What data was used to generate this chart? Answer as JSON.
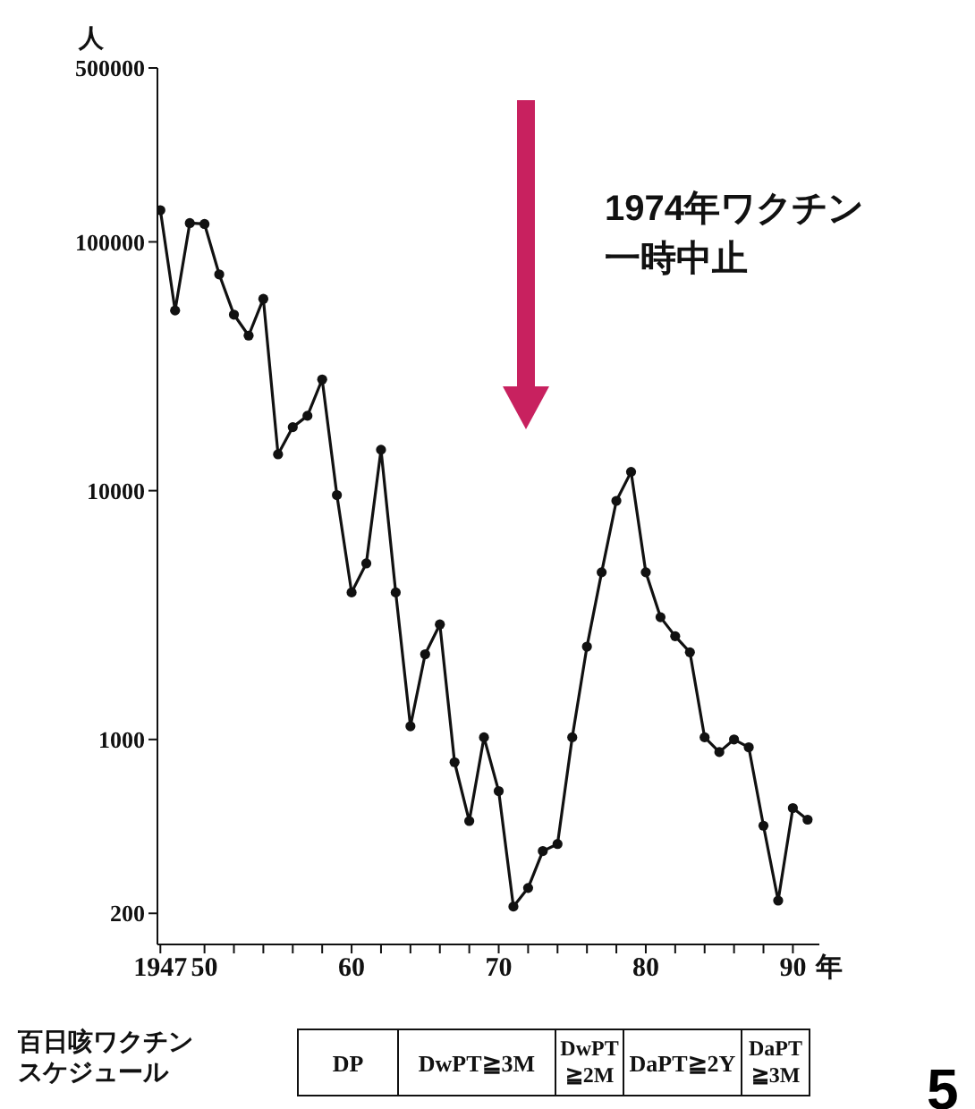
{
  "chart_data": {
    "type": "line",
    "ylabel": "人",
    "xlabel": "年",
    "log": "y",
    "marker": "circle",
    "xlim": [
      1946.8,
      1991.8
    ],
    "xticks": [
      {
        "value": 1947,
        "label": "1947"
      },
      {
        "value": 1950,
        "label": "50"
      },
      {
        "value": 1952,
        "label": null
      },
      {
        "value": 1954,
        "label": null
      },
      {
        "value": 1956,
        "label": null
      },
      {
        "value": 1958,
        "label": null
      },
      {
        "value": 1960,
        "label": "60"
      },
      {
        "value": 1962,
        "label": null
      },
      {
        "value": 1964,
        "label": null
      },
      {
        "value": 1966,
        "label": null
      },
      {
        "value": 1968,
        "label": null
      },
      {
        "value": 1970,
        "label": "70"
      },
      {
        "value": 1972,
        "label": null
      },
      {
        "value": 1974,
        "label": null
      },
      {
        "value": 1976,
        "label": null
      },
      {
        "value": 1978,
        "label": null
      },
      {
        "value": 1980,
        "label": "80"
      },
      {
        "value": 1982,
        "label": null
      },
      {
        "value": 1984,
        "label": null
      },
      {
        "value": 1986,
        "label": null
      },
      {
        "value": 1988,
        "label": null
      },
      {
        "value": 1990,
        "label": "90"
      }
    ],
    "ylim": [
      150,
      500000
    ],
    "yticks": [
      200,
      1000,
      10000,
      100000,
      500000
    ],
    "x": [
      1947,
      1948,
      1949,
      1950,
      1951,
      1952,
      1953,
      1954,
      1955,
      1956,
      1957,
      1958,
      1959,
      1960,
      1961,
      1962,
      1963,
      1964,
      1965,
      1966,
      1967,
      1968,
      1969,
      1970,
      1971,
      1972,
      1973,
      1974,
      1975,
      1976,
      1977,
      1978,
      1979,
      1980,
      1981,
      1982,
      1983,
      1984,
      1985,
      1986,
      1987,
      1988,
      1989,
      1990,
      1991
    ],
    "series": [
      {
        "color": "#111111",
        "values": [
          134000,
          53000,
          119000,
          118000,
          74000,
          51000,
          42000,
          59000,
          14000,
          18000,
          20000,
          28000,
          9600,
          3900,
          5100,
          14600,
          3900,
          1130,
          2200,
          2900,
          810,
          470,
          1020,
          620,
          213,
          253,
          356,
          380,
          1020,
          2360,
          4700,
          9100,
          11900,
          4700,
          3100,
          2600,
          2240,
          1020,
          890,
          1000,
          930,
          450,
          225,
          530,
          476
        ]
      }
    ],
    "annotations": [
      "1974年ワクチン一時中止",
      "百日咳ワクチンスケジュール",
      "DP",
      "DwPT≧3M",
      "DwPT≧2M",
      "DaPT≧2Y",
      "DaPT≧3M",
      "5"
    ]
  }
}
